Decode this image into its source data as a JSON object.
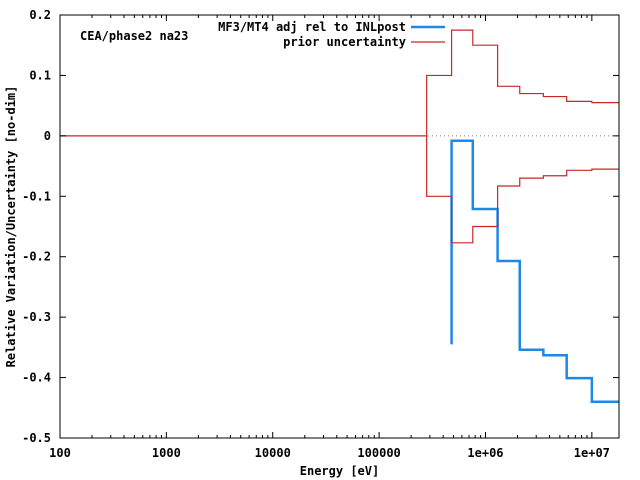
{
  "chart_data": {
    "type": "line",
    "annotation": "CEA/phase2 na23",
    "xlabel": "Energy [eV]",
    "ylabel": "Relative Variation/Uncertainty [no-dim]",
    "xscale": "log",
    "xlim": [
      100,
      18000000
    ],
    "ylim": [
      -0.5,
      0.2
    ],
    "x_ticks": [
      {
        "value": 100,
        "label": "100"
      },
      {
        "value": 1000,
        "label": "1000"
      },
      {
        "value": 10000,
        "label": "10000"
      },
      {
        "value": 100000,
        "label": "100000"
      },
      {
        "value": 1000000,
        "label": "1e+06"
      },
      {
        "value": 10000000,
        "label": "1e+07"
      }
    ],
    "y_ticks": [
      {
        "value": 0.2,
        "label": "0.2"
      },
      {
        "value": 0.1,
        "label": "0.1"
      },
      {
        "value": 0,
        "label": "0"
      },
      {
        "value": -0.1,
        "label": "-0.1"
      },
      {
        "value": -0.2,
        "label": "-0.2"
      },
      {
        "value": -0.3,
        "label": "-0.3"
      },
      {
        "value": -0.4,
        "label": "-0.4"
      },
      {
        "value": -0.5,
        "label": "-0.5"
      }
    ],
    "zero_line": true,
    "legend_position": "top-right",
    "series": [
      {
        "name": "MF3/MT4 adj rel to INLpost",
        "color": "#1e88e5",
        "style": "step",
        "points": [
          [
            480000,
            -0.345
          ],
          [
            480000,
            -0.008
          ],
          [
            760000,
            -0.008
          ],
          [
            760000,
            -0.121
          ],
          [
            1300000,
            -0.121
          ],
          [
            1300000,
            -0.207
          ],
          [
            2100000,
            -0.207
          ],
          [
            2100000,
            -0.354
          ],
          [
            3500000,
            -0.354
          ],
          [
            3500000,
            -0.363
          ],
          [
            5800000,
            -0.363
          ],
          [
            5800000,
            -0.401
          ],
          [
            10000000,
            -0.401
          ],
          [
            10000000,
            -0.44
          ],
          [
            18000000,
            -0.44
          ]
        ]
      },
      {
        "name": "prior uncertainty",
        "color": "#c62828",
        "style": "step",
        "points": [
          [
            100,
            0
          ],
          [
            280000,
            0
          ],
          [
            280000,
            0.1
          ],
          [
            480000,
            0.1
          ],
          [
            480000,
            0.175
          ],
          [
            760000,
            0.175
          ],
          [
            760000,
            0.15
          ],
          [
            1300000,
            0.15
          ],
          [
            1300000,
            0.082
          ],
          [
            2100000,
            0.082
          ],
          [
            2100000,
            0.07
          ],
          [
            3500000,
            0.07
          ],
          [
            3500000,
            0.065
          ],
          [
            5800000,
            0.065
          ],
          [
            5800000,
            0.057
          ],
          [
            10000000,
            0.057
          ],
          [
            10000000,
            0.055
          ],
          [
            18000000,
            0.055
          ]
        ]
      },
      {
        "name": "",
        "color": "#c62828",
        "style": "step",
        "points": [
          [
            280000,
            0
          ],
          [
            280000,
            -0.1
          ],
          [
            480000,
            -0.1
          ],
          [
            480000,
            -0.177
          ],
          [
            760000,
            -0.177
          ],
          [
            760000,
            -0.15
          ],
          [
            1300000,
            -0.15
          ],
          [
            1300000,
            -0.083
          ],
          [
            2100000,
            -0.083
          ],
          [
            2100000,
            -0.07
          ],
          [
            3500000,
            -0.07
          ],
          [
            3500000,
            -0.066
          ],
          [
            5800000,
            -0.066
          ],
          [
            5800000,
            -0.057
          ],
          [
            10000000,
            -0.057
          ],
          [
            10000000,
            -0.055
          ],
          [
            18000000,
            -0.055
          ]
        ]
      }
    ]
  }
}
